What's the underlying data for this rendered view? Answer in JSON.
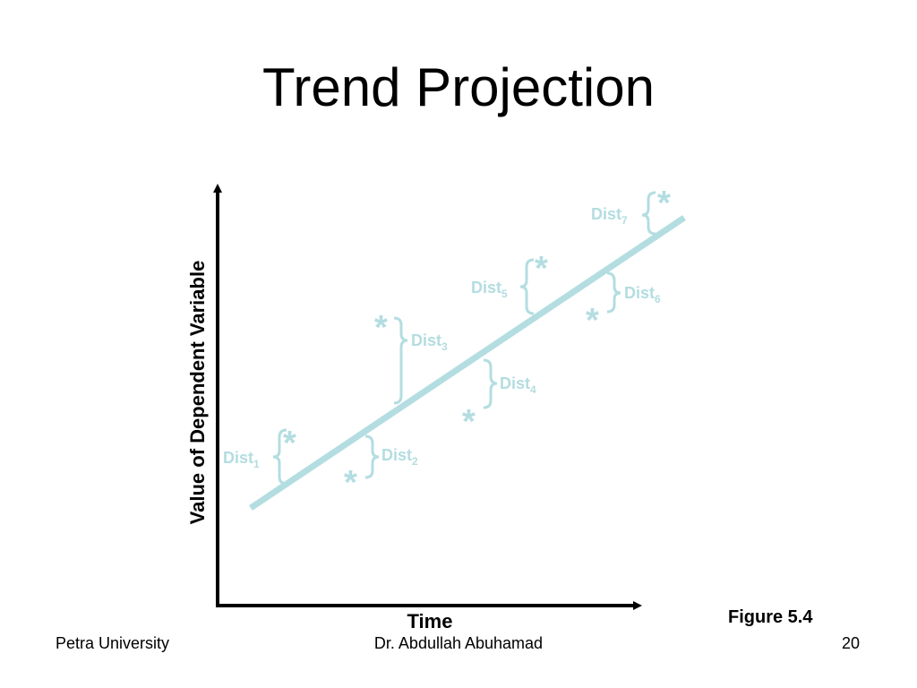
{
  "slide": {
    "title": "Trend Projection",
    "figure_label": "Figure 5.4"
  },
  "footer": {
    "left": "Petra University",
    "center": "Dr. Abdullah Abuhamad",
    "page_number": "20"
  },
  "diagram": {
    "x_axis_label": "Time",
    "y_axis_label": "Value of Dependent Variable",
    "point_marker": "*",
    "colors": {
      "accent": "#b3dde1",
      "axis": "#000000"
    },
    "distances": [
      {
        "base": "Dist",
        "sub": "1"
      },
      {
        "base": "Dist",
        "sub": "2"
      },
      {
        "base": "Dist",
        "sub": "3"
      },
      {
        "base": "Dist",
        "sub": "4"
      },
      {
        "base": "Dist",
        "sub": "5"
      },
      {
        "base": "Dist",
        "sub": "6"
      },
      {
        "base": "Dist",
        "sub": "7"
      }
    ]
  }
}
